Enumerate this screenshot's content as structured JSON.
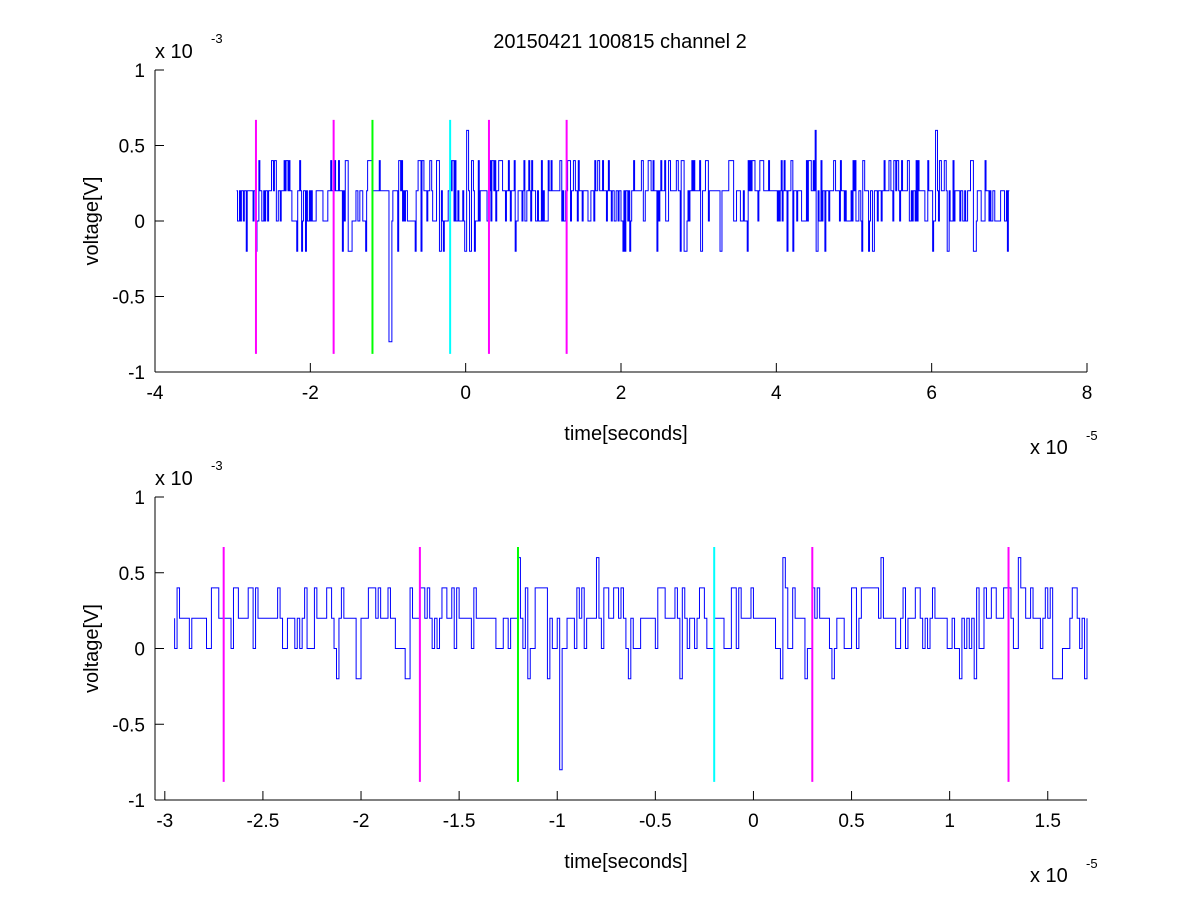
{
  "title": "20150421 100815 channel 2",
  "colors": {
    "signal": "#0000ff",
    "marker_magenta": "#ff00ff",
    "marker_green": "#00ff00",
    "marker_cyan": "#00ffff",
    "axes": "#000000",
    "background": "#ffffff"
  },
  "chart_data": [
    {
      "type": "line",
      "title": "20150421 100815 channel 2",
      "xlabel": "time[seconds]",
      "ylabel": "voltage[V]",
      "x_exponent_label": "x 10",
      "x_exponent_power": "-5",
      "y_exponent_label": "x 10",
      "y_exponent_power": "-3",
      "xlim": [
        -4,
        8
      ],
      "ylim": [
        -1,
        1
      ],
      "x_scale_exp": -5,
      "y_scale_exp": -3,
      "xticks": [
        -4,
        -2,
        0,
        2,
        4,
        6,
        8
      ],
      "xtick_labels": [
        "-4",
        "-2",
        "0",
        "2",
        "4",
        "6",
        "8"
      ],
      "yticks": [
        -1,
        -0.5,
        0,
        0.5,
        1
      ],
      "ytick_labels": [
        "-1",
        "-0.5",
        "0",
        "0.5",
        "1"
      ],
      "grid": false,
      "signal": {
        "x_range": [
          -2.95,
          7.0
        ],
        "baseline": 0.2,
        "levels": [
          -0.2,
          0,
          0.2,
          0.4
        ],
        "spikes": [
          {
            "x": 0.02,
            "y": 0.6
          },
          {
            "x": -0.99,
            "y": -0.8
          },
          {
            "x": 0.98,
            "y": 0.4
          },
          {
            "x": 4.5,
            "y": 0.6
          },
          {
            "x": 6.05,
            "y": 0.6
          }
        ]
      },
      "markers": [
        {
          "x": -2.7,
          "color": "magenta",
          "y_range": [
            -0.88,
            0.67
          ]
        },
        {
          "x": -1.7,
          "color": "magenta",
          "y_range": [
            -0.88,
            0.67
          ]
        },
        {
          "x": -1.2,
          "color": "green",
          "y_range": [
            -0.88,
            0.67
          ]
        },
        {
          "x": -0.2,
          "color": "cyan",
          "y_range": [
            -0.88,
            0.67
          ]
        },
        {
          "x": 0.3,
          "color": "magenta",
          "y_range": [
            -0.88,
            0.67
          ]
        },
        {
          "x": 1.3,
          "color": "magenta",
          "y_range": [
            -0.88,
            0.67
          ]
        }
      ]
    },
    {
      "type": "line",
      "xlabel": "time[seconds]",
      "ylabel": "voltage[V]",
      "x_exponent_label": "x 10",
      "x_exponent_power": "-5",
      "y_exponent_label": "x 10",
      "y_exponent_power": "-3",
      "xlim": [
        -3.05,
        1.7
      ],
      "ylim": [
        -1,
        1
      ],
      "x_scale_exp": -5,
      "y_scale_exp": -3,
      "xticks": [
        -3,
        -2.5,
        -2,
        -1.5,
        -1,
        -0.5,
        0,
        0.5,
        1,
        1.5
      ],
      "xtick_labels": [
        "-3",
        "-2.5",
        "-2",
        "-1.5",
        "-1",
        "-0.5",
        "0",
        "0.5",
        "1",
        "1.5"
      ],
      "yticks": [
        -1,
        -0.5,
        0,
        0.5,
        1
      ],
      "ytick_labels": [
        "-1",
        "-0.5",
        "0",
        "0.5",
        "1"
      ],
      "grid": false,
      "signal": {
        "x_range": [
          -2.95,
          1.7
        ],
        "baseline": 0.2,
        "levels": [
          -0.2,
          0,
          0.2,
          0.4
        ],
        "spikes": [
          {
            "x": -1.2,
            "y": 0.6
          },
          {
            "x": -0.99,
            "y": -0.8
          },
          {
            "x": 0.15,
            "y": 0.6
          },
          {
            "x": 0.65,
            "y": 0.6
          },
          {
            "x": 1.35,
            "y": 0.6
          },
          {
            "x": -0.8,
            "y": 0.6
          }
        ]
      },
      "markers": [
        {
          "x": -2.7,
          "color": "magenta",
          "y_range": [
            -0.88,
            0.67
          ]
        },
        {
          "x": -1.7,
          "color": "magenta",
          "y_range": [
            -0.88,
            0.67
          ]
        },
        {
          "x": -1.2,
          "color": "green",
          "y_range": [
            -0.88,
            0.67
          ]
        },
        {
          "x": -0.2,
          "color": "cyan",
          "y_range": [
            -0.88,
            0.67
          ]
        },
        {
          "x": 0.3,
          "color": "magenta",
          "y_range": [
            -0.88,
            0.67
          ]
        },
        {
          "x": 1.3,
          "color": "magenta",
          "y_range": [
            -0.88,
            0.67
          ]
        }
      ]
    }
  ]
}
